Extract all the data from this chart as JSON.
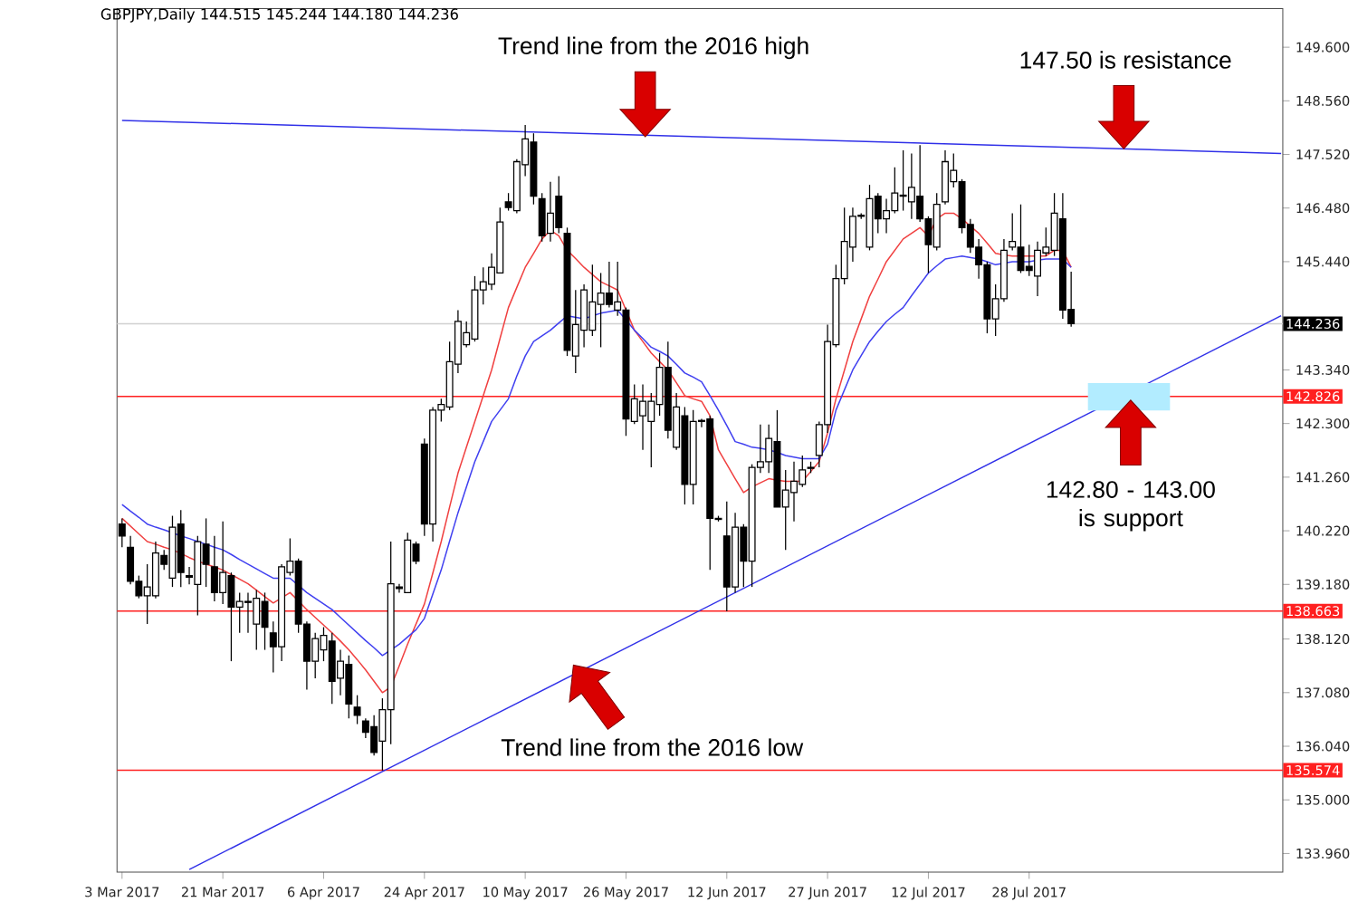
{
  "chart_data": {
    "type": "candlestick",
    "title": "GBPJPY,Daily 144.515 145.244 144.180 144.236",
    "categories": [
      "3 Mar 2017",
      null,
      null,
      null,
      null,
      null,
      null,
      null,
      null,
      null,
      null,
      null,
      "21 Mar 2017",
      null,
      null,
      null,
      null,
      null,
      null,
      null,
      null,
      null,
      null,
      null,
      "6 Apr 2017",
      null,
      null,
      null,
      null,
      null,
      null,
      null,
      null,
      null,
      null,
      null,
      "24 Apr 2017",
      null,
      null,
      null,
      null,
      null,
      null,
      null,
      null,
      null,
      null,
      null,
      "10 May 2017",
      null,
      null,
      null,
      null,
      null,
      null,
      null,
      null,
      null,
      null,
      null,
      "26 May 2017",
      null,
      null,
      null,
      null,
      null,
      null,
      null,
      null,
      null,
      null,
      null,
      "12 Jun 2017",
      null,
      null,
      null,
      null,
      null,
      null,
      null,
      null,
      null,
      null,
      null,
      "27 Jun 2017",
      null,
      null,
      null,
      null,
      null,
      null,
      null,
      null,
      null,
      null,
      null,
      "12 Jul 2017",
      null,
      null,
      null,
      null,
      null,
      null,
      null,
      null,
      null,
      null,
      null,
      "28 Jul 2017",
      null,
      null,
      null,
      null,
      null,
      null,
      null,
      null,
      null,
      null,
      null,
      null,
      null,
      null,
      null,
      null,
      null,
      null,
      null,
      null,
      null,
      null,
      null,
      null,
      null,
      null,
      null,
      null,
      null,
      null
    ],
    "ohlc": [
      [
        140.35,
        140.46,
        139.9,
        140.12
      ],
      [
        139.9,
        140.12,
        139.18,
        139.24
      ],
      [
        139.24,
        139.35,
        138.91,
        138.96
      ],
      [
        138.96,
        139.57,
        138.41,
        139.13
      ],
      [
        138.96,
        140.01,
        138.91,
        139.79
      ],
      [
        139.74,
        139.85,
        139.46,
        139.57
      ],
      [
        139.3,
        140.51,
        139.13,
        140.29
      ],
      [
        140.35,
        140.62,
        139.13,
        139.41
      ],
      [
        139.35,
        139.52,
        139.18,
        139.32
      ],
      [
        139.18,
        140.12,
        138.58,
        140.01
      ],
      [
        139.96,
        140.46,
        139.13,
        139.57
      ],
      [
        139.52,
        140.12,
        138.85,
        139.02
      ],
      [
        139.02,
        140.4,
        138.8,
        139.41
      ],
      [
        139.35,
        139.41,
        137.69,
        138.74
      ],
      [
        138.74,
        139.02,
        138.24,
        138.85
      ],
      [
        138.85,
        139.02,
        138.24,
        138.83
      ],
      [
        138.41,
        139.07,
        137.91,
        138.91
      ],
      [
        138.85,
        139.02,
        137.91,
        138.35
      ],
      [
        138.24,
        138.46,
        137.47,
        137.97
      ],
      [
        137.97,
        139.57,
        137.69,
        139.52
      ],
      [
        139.41,
        140.07,
        139.35,
        139.63
      ],
      [
        139.63,
        139.68,
        138.24,
        138.41
      ],
      [
        138.41,
        138.46,
        137.14,
        137.69
      ],
      [
        137.69,
        138.24,
        137.36,
        138.13
      ],
      [
        137.91,
        138.35,
        137.69,
        138.19
      ],
      [
        138.08,
        138.24,
        136.86,
        137.3
      ],
      [
        137.36,
        137.91,
        137.03,
        137.69
      ],
      [
        137.63,
        137.8,
        136.58,
        136.86
      ],
      [
        136.8,
        137.03,
        136.47,
        136.64
      ],
      [
        136.53,
        136.58,
        136.2,
        136.31
      ],
      [
        136.42,
        136.64,
        135.86,
        135.92
      ],
      [
        136.14,
        136.97,
        135.57,
        136.75
      ],
      [
        136.75,
        140.01,
        136.08,
        139.19
      ],
      [
        139.13,
        139.19,
        139.02,
        139.1
      ],
      [
        139.02,
        140.18,
        139.02,
        140.04
      ],
      [
        139.96,
        140.01,
        139.57,
        139.63
      ],
      [
        141.9,
        142.01,
        140.12,
        140.35
      ],
      [
        140.35,
        142.62,
        140.01,
        142.56
      ],
      [
        142.56,
        142.78,
        142.34,
        142.67
      ],
      [
        142.62,
        143.89,
        142.56,
        143.5
      ],
      [
        143.45,
        144.5,
        143.28,
        144.28
      ],
      [
        143.83,
        144.28,
        143.78,
        144.06
      ],
      [
        143.94,
        145.16,
        143.89,
        144.89
      ],
      [
        144.89,
        145.33,
        144.61,
        145.05
      ],
      [
        145.0,
        145.6,
        144.89,
        145.33
      ],
      [
        145.22,
        146.49,
        145.22,
        146.21
      ],
      [
        146.6,
        146.77,
        146.43,
        146.49
      ],
      [
        146.43,
        147.43,
        146.38,
        147.38
      ],
      [
        147.32,
        148.09,
        147.1,
        147.82
      ],
      [
        147.76,
        147.93,
        146.55,
        146.71
      ],
      [
        146.66,
        146.77,
        145.83,
        145.94
      ],
      [
        145.99,
        146.99,
        145.83,
        146.38
      ],
      [
        146.71,
        147.1,
        145.99,
        146.1
      ],
      [
        145.99,
        146.1,
        143.61,
        143.72
      ],
      [
        143.61,
        144.89,
        143.28,
        144.22
      ],
      [
        144.11,
        145.0,
        143.78,
        144.89
      ],
      [
        144.11,
        145.38,
        144.0,
        144.66
      ],
      [
        144.61,
        145.22,
        143.78,
        144.83
      ],
      [
        144.83,
        145.44,
        144.55,
        144.61
      ],
      [
        144.5,
        145.44,
        144.39,
        144.66
      ],
      [
        144.5,
        144.55,
        142.06,
        142.39
      ],
      [
        142.34,
        143.06,
        142.29,
        142.78
      ],
      [
        142.45,
        143.06,
        141.79,
        142.73
      ],
      [
        142.34,
        142.89,
        141.45,
        142.73
      ],
      [
        142.67,
        143.67,
        142.45,
        143.39
      ],
      [
        143.39,
        143.89,
        142.01,
        142.17
      ],
      [
        141.84,
        142.89,
        141.79,
        142.62
      ],
      [
        142.45,
        142.62,
        140.73,
        141.12
      ],
      [
        141.12,
        142.56,
        140.73,
        142.34
      ],
      [
        142.34,
        142.39,
        142.23,
        142.36
      ],
      [
        142.39,
        142.45,
        139.46,
        140.46
      ],
      [
        140.46,
        140.51,
        140.4,
        140.44
      ],
      [
        140.12,
        140.79,
        138.66,
        139.13
      ],
      [
        139.13,
        140.57,
        139.02,
        140.29
      ],
      [
        140.29,
        140.35,
        139.13,
        139.63
      ],
      [
        139.63,
        141.51,
        139.13,
        141.45
      ],
      [
        141.45,
        142.28,
        141.34,
        141.56
      ],
      [
        141.56,
        142.28,
        141.34,
        142.01
      ],
      [
        141.95,
        142.56,
        140.68,
        140.68
      ],
      [
        140.68,
        141.4,
        139.85,
        141.01
      ],
      [
        140.96,
        141.56,
        140.4,
        141.18
      ],
      [
        141.12,
        141.68,
        141.07,
        141.4
      ],
      [
        141.43,
        141.56,
        141.34,
        141.45
      ],
      [
        141.68,
        142.34,
        141.45,
        142.28
      ],
      [
        142.28,
        144.22,
        142.12,
        143.89
      ],
      [
        143.83,
        145.38,
        143.78,
        145.11
      ],
      [
        145.11,
        146.49,
        145.0,
        145.83
      ],
      [
        145.72,
        146.49,
        145.44,
        146.32
      ],
      [
        146.32,
        146.38,
        146.27,
        146.34
      ],
      [
        145.72,
        146.93,
        145.66,
        146.66
      ],
      [
        146.71,
        146.77,
        145.99,
        146.27
      ],
      [
        146.27,
        146.66,
        145.99,
        146.43
      ],
      [
        146.43,
        147.27,
        146.38,
        146.77
      ],
      [
        146.71,
        147.6,
        146.43,
        146.73
      ],
      [
        146.6,
        147.54,
        146.27,
        146.88
      ],
      [
        146.71,
        147.7,
        146.21,
        146.27
      ],
      [
        146.27,
        146.32,
        145.22,
        145.77
      ],
      [
        145.72,
        146.77,
        145.66,
        146.55
      ],
      [
        146.6,
        147.6,
        146.55,
        147.38
      ],
      [
        146.99,
        147.54,
        146.88,
        147.21
      ],
      [
        146.99,
        147.04,
        145.99,
        146.1
      ],
      [
        146.16,
        146.27,
        145.61,
        145.72
      ],
      [
        145.72,
        145.88,
        145.11,
        145.38
      ],
      [
        145.38,
        145.44,
        144.05,
        144.33
      ],
      [
        144.33,
        145.0,
        144.0,
        144.72
      ],
      [
        144.72,
        145.88,
        144.66,
        145.66
      ],
      [
        145.72,
        146.38,
        145.66,
        145.83
      ],
      [
        145.72,
        146.55,
        145.22,
        145.27
      ],
      [
        145.35,
        145.77,
        145.16,
        145.27
      ],
      [
        145.16,
        145.83,
        144.77,
        145.66
      ],
      [
        145.61,
        146.1,
        145.55,
        145.72
      ],
      [
        145.66,
        146.77,
        145.55,
        146.38
      ],
      [
        146.27,
        146.77,
        144.33,
        144.5
      ],
      [
        144.515,
        145.244,
        144.18,
        144.236
      ],
      null,
      null,
      null,
      null,
      null,
      null,
      null,
      null,
      null,
      null,
      null,
      null,
      null,
      null,
      null,
      null,
      null,
      null,
      null,
      null,
      null,
      null,
      null,
      null,
      null
    ],
    "series": [
      {
        "type": "line",
        "color": "#f04040",
        "values": [
          140.46,
          140.31,
          140.16,
          140.01,
          139.96,
          139.9,
          139.85,
          139.78,
          139.7,
          139.63,
          139.57,
          139.52,
          139.46,
          139.37,
          139.28,
          139.19,
          139.07,
          138.94,
          138.82,
          138.92,
          139.02,
          138.86,
          138.69,
          138.54,
          138.39,
          138.24,
          138.08,
          137.91,
          137.72,
          137.52,
          137.3,
          137.08,
          137.19,
          137.6,
          138.02,
          138.41,
          138.8,
          139.4,
          140.01,
          140.68,
          141.34,
          141.84,
          142.34,
          142.84,
          143.34,
          143.95,
          144.55,
          144.94,
          145.33,
          145.6,
          145.88,
          146.05,
          145.94,
          145.66,
          145.5,
          145.33,
          145.19,
          145.05,
          144.97,
          144.89,
          144.5,
          144.11,
          143.89,
          143.67,
          143.5,
          143.34,
          143.09,
          142.84,
          142.78,
          142.73,
          142.45,
          141.79,
          141.51,
          141.23,
          140.96,
          141.07,
          141.15,
          141.23,
          141.2,
          141.18,
          141.18,
          141.18,
          141.37,
          141.56,
          142.12,
          142.78,
          143.33,
          143.89,
          144.33,
          144.77,
          145.1,
          145.44,
          145.66,
          145.88,
          145.99,
          146.1,
          145.94,
          146.27,
          146.38,
          146.38,
          146.27,
          146.13,
          145.99,
          145.8,
          145.6,
          145.57,
          145.55,
          145.55,
          145.55,
          145.55,
          145.55,
          145.66,
          145.66,
          145.33,
          null,
          null,
          null,
          null,
          null,
          null,
          null,
          null,
          null,
          null,
          null,
          null,
          null,
          null,
          null,
          null,
          null,
          null,
          null,
          null,
          null,
          null,
          null,
          null,
          null
        ]
      },
      {
        "type": "line",
        "color": "#4040f0",
        "values": [
          140.73,
          140.6,
          140.48,
          140.35,
          140.29,
          140.24,
          140.18,
          140.12,
          140.07,
          140.01,
          139.96,
          139.9,
          139.85,
          139.76,
          139.66,
          139.57,
          139.48,
          139.39,
          139.3,
          139.3,
          139.3,
          139.16,
          139.02,
          138.91,
          138.8,
          138.69,
          138.54,
          138.39,
          138.24,
          138.09,
          137.95,
          137.8,
          137.91,
          138.02,
          138.16,
          138.3,
          138.52,
          138.99,
          139.46,
          140.02,
          140.57,
          141.07,
          141.56,
          141.95,
          142.34,
          142.56,
          142.78,
          143.22,
          143.61,
          143.89,
          144.0,
          144.11,
          144.25,
          144.39,
          144.36,
          144.33,
          144.39,
          144.44,
          144.47,
          144.5,
          144.31,
          144.11,
          143.95,
          143.78,
          143.7,
          143.61,
          143.45,
          143.28,
          143.2,
          143.11,
          142.84,
          142.56,
          142.26,
          141.95,
          141.9,
          141.84,
          141.82,
          141.79,
          141.74,
          141.68,
          141.65,
          141.62,
          141.62,
          141.62,
          141.9,
          142.56,
          142.95,
          143.34,
          143.62,
          143.89,
          144.09,
          144.28,
          144.42,
          144.55,
          144.78,
          145.0,
          145.22,
          145.36,
          145.49,
          145.52,
          145.55,
          145.52,
          145.49,
          145.44,
          145.38,
          145.41,
          145.44,
          145.44,
          145.44,
          145.47,
          145.49,
          145.49,
          145.49,
          145.33,
          null,
          null,
          null,
          null,
          null,
          null,
          null,
          null,
          null,
          null,
          null,
          null,
          null,
          null,
          null,
          null,
          null,
          null,
          null,
          null,
          null,
          null,
          null,
          null,
          null
        ]
      },
      {
        "type": "line",
        "color": "#3030e8",
        "values": [
          148.18,
          null,
          null,
          null,
          null,
          null,
          null,
          null,
          null,
          null,
          null,
          null,
          null,
          null,
          null,
          null,
          null,
          null,
          null,
          null,
          null,
          null,
          null,
          null,
          null,
          null,
          null,
          null,
          null,
          null,
          null,
          null,
          null,
          null,
          null,
          null,
          null,
          null,
          null,
          null,
          null,
          null,
          null,
          null,
          null,
          null,
          null,
          null,
          null,
          null,
          null,
          null,
          null,
          null,
          null,
          null,
          null,
          null,
          null,
          null,
          null,
          null,
          null,
          null,
          null,
          null,
          null,
          null,
          null,
          null,
          null,
          null,
          null,
          null,
          null,
          null,
          null,
          null,
          null,
          null,
          null,
          null,
          null,
          null,
          null,
          null,
          null,
          null,
          null,
          null,
          null,
          null,
          null,
          null,
          null,
          null,
          null,
          null,
          null,
          null,
          null,
          null,
          null,
          null,
          null,
          null,
          null,
          null,
          null,
          null,
          null,
          null,
          null,
          null,
          null,
          null,
          null,
          null,
          null,
          null,
          null,
          null,
          null,
          null,
          null,
          null,
          null,
          null,
          null,
          null,
          null,
          null,
          null,
          null,
          null,
          null,
          null,
          null,
          147.54
        ]
      },
      {
        "type": "line",
        "color": "#3030e8",
        "values": [
          null,
          null,
          null,
          null,
          null,
          null,
          null,
          null,
          133.65,
          null,
          null,
          null,
          null,
          null,
          null,
          null,
          null,
          null,
          null,
          null,
          null,
          null,
          null,
          null,
          null,
          null,
          null,
          null,
          null,
          null,
          null,
          null,
          null,
          null,
          null,
          null,
          null,
          null,
          null,
          null,
          null,
          null,
          null,
          null,
          null,
          null,
          null,
          null,
          null,
          null,
          null,
          null,
          null,
          null,
          null,
          null,
          null,
          null,
          null,
          null,
          null,
          null,
          null,
          null,
          null,
          null,
          null,
          null,
          null,
          null,
          null,
          null,
          null,
          null,
          null,
          null,
          null,
          null,
          null,
          null,
          null,
          null,
          null,
          null,
          null,
          null,
          null,
          null,
          null,
          null,
          null,
          null,
          null,
          null,
          null,
          null,
          null,
          null,
          null,
          null,
          null,
          null,
          null,
          null,
          null,
          null,
          null,
          null,
          null,
          null,
          null,
          null,
          null,
          null,
          null,
          null,
          null,
          null,
          null,
          null,
          null,
          null,
          null,
          null,
          null,
          null,
          null,
          null,
          null,
          null,
          null,
          null,
          null,
          null,
          null,
          null,
          null,
          null,
          144.39
        ]
      }
    ],
    "ylim": [
      133.6,
      150.35
    ],
    "yticks": [
      {
        "value": 133.96,
        "label": "133.960"
      },
      {
        "value": 135,
        "label": "135.000"
      },
      {
        "value": 136.04,
        "label": "136.040"
      },
      {
        "value": 137.08,
        "label": "137.080"
      },
      {
        "value": 138.12,
        "label": "138.120"
      },
      {
        "value": 139.18,
        "label": "139.180"
      },
      {
        "value": 140.22,
        "label": "140.220"
      },
      {
        "value": 141.26,
        "label": "141.260"
      },
      {
        "value": 142.3,
        "label": "142.300"
      },
      {
        "value": 143.34,
        "label": "143.340"
      },
      {
        "value": 145.44,
        "label": "145.440"
      },
      {
        "value": 146.48,
        "label": "146.480"
      },
      {
        "value": 147.52,
        "label": "147.520"
      },
      {
        "value": 148.56,
        "label": "148.560"
      },
      {
        "value": 149.6,
        "label": "149.600"
      }
    ],
    "ref_lines": [
      {
        "axis": "y",
        "value": 144.236,
        "label": "144.236",
        "color": "#d0d0d0"
      },
      {
        "axis": "y",
        "value": 142.826,
        "label": "142.826",
        "color": "#ff2020"
      },
      {
        "axis": "y",
        "value": 138.663,
        "label": "138.663",
        "color": "#ff2020"
      },
      {
        "axis": "y",
        "value": 135.574,
        "label": "135.574",
        "color": "#ff2020"
      }
    ],
    "annotations": [
      "Trend line from the 2016 high",
      "147.50 is resistance",
      "142.80 - 143.00 is support",
      "Trend line from the 2016 low"
    ]
  }
}
